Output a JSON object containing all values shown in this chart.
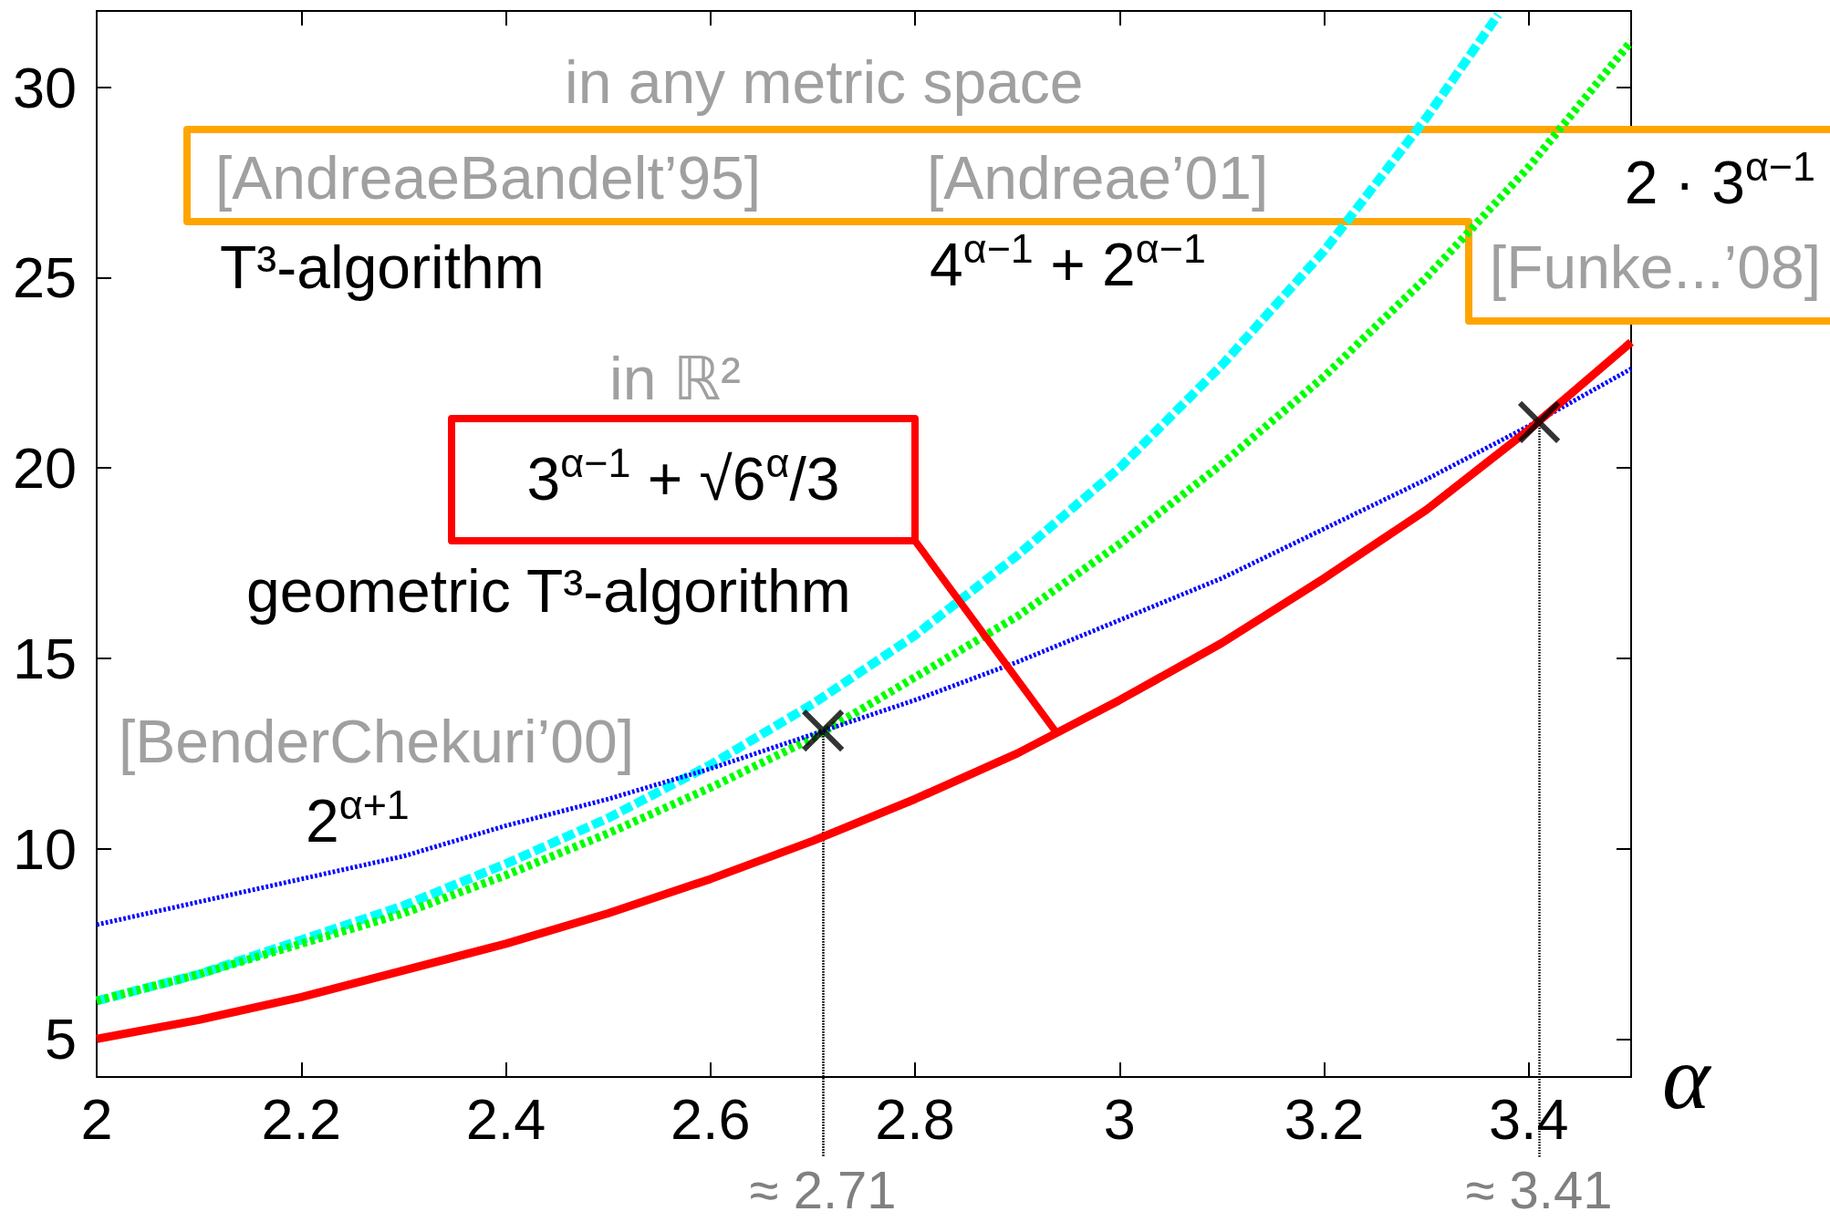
{
  "chart_data": {
    "type": "line",
    "xlabel": "α",
    "xlim": [
      2,
      3.5
    ],
    "xticks": [
      2,
      2.2,
      2.4,
      2.6,
      2.8,
      3,
      3.2,
      3.4
    ],
    "ylim": [
      4,
      32
    ],
    "yticks": [
      5,
      10,
      15,
      20,
      25,
      30
    ],
    "x": [
      2,
      2.1,
      2.2,
      2.3,
      2.4,
      2.5,
      2.6,
      2.7,
      2.8,
      2.9,
      3,
      3.1,
      3.2,
      3.3,
      3.4,
      3.5
    ],
    "series": [
      {
        "color": "#00ffff",
        "line_style": "dashed",
        "x": [
          2,
          2.1,
          2.2,
          2.3,
          2.4,
          2.5,
          2.6,
          2.7,
          2.8,
          2.9,
          3,
          3.1,
          3.2,
          3.3,
          3.37
        ],
        "values": [
          6,
          6.7,
          7.6,
          8.5,
          9.6,
          10.8,
          12.2,
          13.8,
          15.6,
          17.7,
          20,
          22.7,
          25.7,
          29.2,
          31.9
        ]
      },
      {
        "color": "#00ff00",
        "line_style": "dotted",
        "values": [
          6,
          6.7,
          7.5,
          8.3,
          9.3,
          10.4,
          11.6,
          12.9,
          14.5,
          16.1,
          18,
          20.1,
          22.4,
          25,
          27.9,
          31.2
        ]
      },
      {
        "color": "#0000ff",
        "line_style": "dotted",
        "values": [
          8,
          8.6,
          9.2,
          9.8,
          10.6,
          11.3,
          12.1,
          13,
          13.9,
          14.9,
          16,
          17.1,
          18.4,
          19.7,
          21.1,
          22.6
        ]
      },
      {
        "color": "#ff0000",
        "line_style": "solid",
        "values": [
          5,
          5.5,
          6.1,
          6.8,
          7.5,
          8.3,
          9.2,
          10.2,
          11.3,
          12.5,
          13.9,
          15.4,
          17.1,
          18.9,
          21,
          23.3
        ]
      },
      {
        "type": "scatter",
        "color": "#000000",
        "marker": "cross",
        "x": [
          2.71,
          3.41
        ],
        "values": [
          13.1,
          21.2
        ]
      }
    ],
    "ref_lines": [
      {
        "axis": "x",
        "value": 2.71,
        "label": "≈ 2.71",
        "color": "#000000",
        "line_style": "dotted"
      },
      {
        "axis": "x",
        "value": 3.41,
        "label": "≈ 3.41",
        "color": "#000000",
        "line_style": "dotted"
      }
    ],
    "annotations": [
      "in any metric space",
      "[AndreaeBandelt’95]",
      "[Andreae’01]",
      "2 · 3$^{α−1}$",
      "[Funke...’08]",
      "T³-algorithm",
      "4$^{α−1}$ + 2$^{α−1}$",
      "in ℝ²",
      "3$^{α−1}$ + √6$^{α}$/3",
      "geometric T³-algorithm",
      "[BenderChekuri’00]",
      "2$^{α+1}$"
    ]
  }
}
